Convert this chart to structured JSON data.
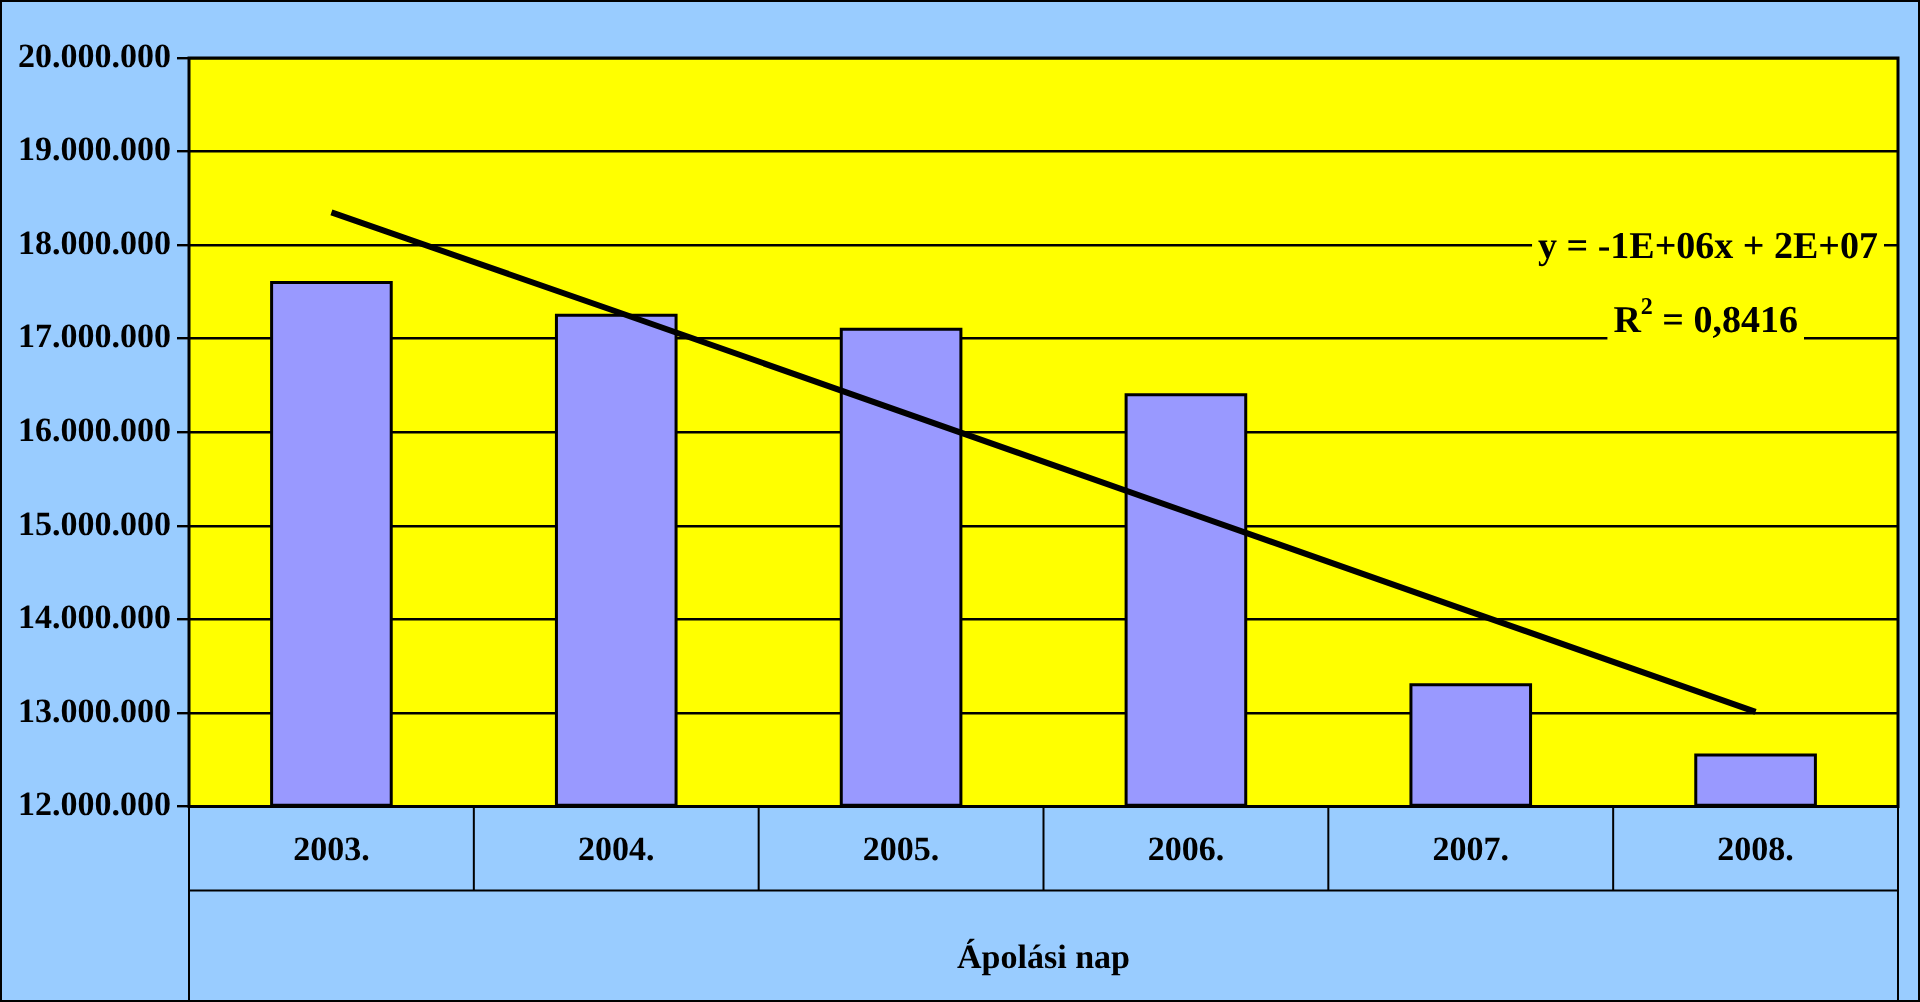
{
  "chart_data": {
    "type": "bar",
    "xlabel": "Ápolási nap",
    "categories": [
      "2003.",
      "2004.",
      "2005.",
      "2006.",
      "2007.",
      "2008."
    ],
    "series": [
      {
        "type": "bar",
        "color": "#9999ff",
        "values": [
          17600000,
          17250000,
          17100000,
          16400000,
          13300000,
          12550000
        ]
      },
      {
        "type": "line",
        "color": "#000000",
        "marker": "none",
        "values": [
          18350000,
          17290000,
          16220000,
          15150000,
          14080000,
          13010000
        ]
      }
    ],
    "ylim": [
      12000000,
      20000000
    ],
    "yticks": [
      {
        "value": 12000000,
        "label": "12.000.000"
      },
      {
        "value": 13000000,
        "label": "13.000.000"
      },
      {
        "value": 14000000,
        "label": "14.000.000"
      },
      {
        "value": 15000000,
        "label": "15.000.000"
      },
      {
        "value": 16000000,
        "label": "16.000.000"
      },
      {
        "value": 17000000,
        "label": "17.000.000"
      },
      {
        "value": 18000000,
        "label": "18.000.000"
      },
      {
        "value": 19000000,
        "label": "19.000.000"
      },
      {
        "value": 20000000,
        "label": "20.000.000"
      }
    ],
    "grid": "y",
    "legend": false,
    "annotations": [
      "y = -1E+06x + 2E+07",
      "R$^{2}$ = 0,8416"
    ]
  }
}
